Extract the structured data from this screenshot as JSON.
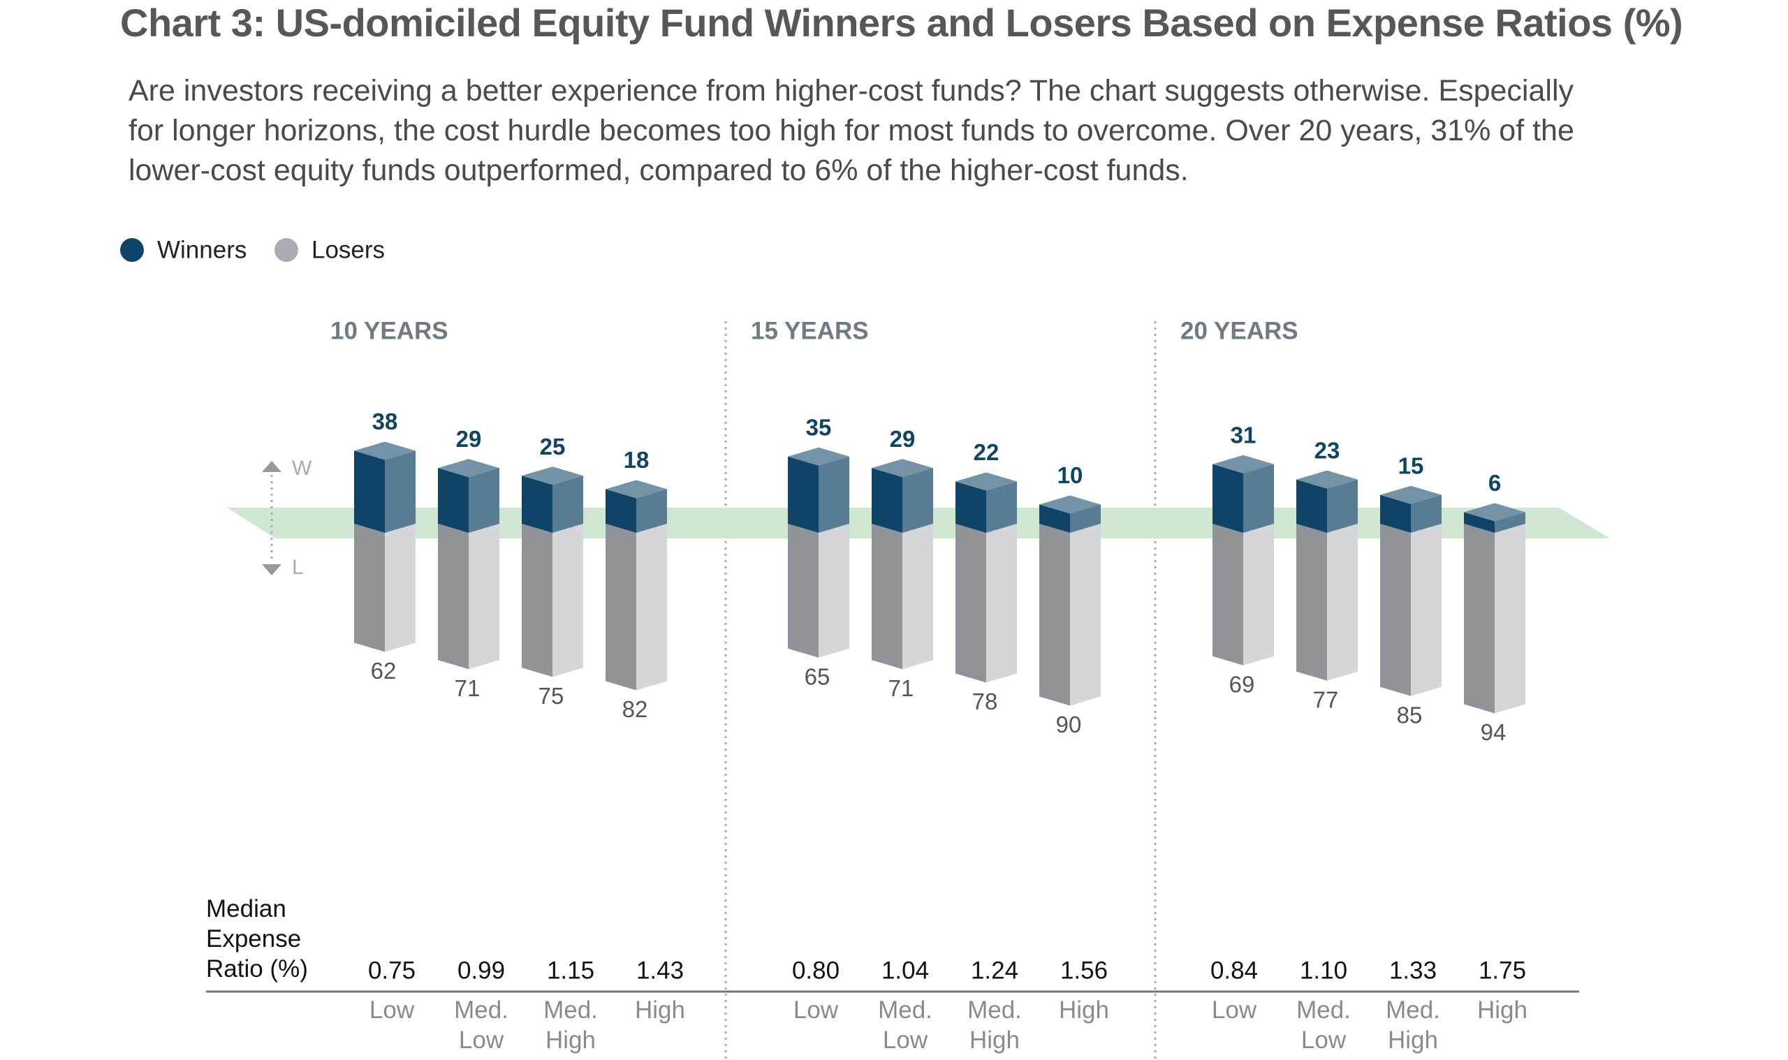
{
  "chart_data": {
    "type": "bar3d",
    "title": "Chart 3: US-domiciled Equity Fund Winners and Losers Based on Expense Ratios (%)",
    "subtitle": "Are investors receiving a better experience from higher-cost funds? The chart suggests otherwise. Especially for longer horizons, the cost hurdle becomes too high for most funds to overcome. Over 20 years, 31% of the lower-cost equity funds outperformed, compared to 6% of the higher-cost funds.",
    "panels": [
      "10 YEARS",
      "15 YEARS",
      "20 YEARS"
    ],
    "categories": [
      "Low",
      "Med. Low",
      "Med. High",
      "High"
    ],
    "direction_labels": {
      "up": "W",
      "down": "L"
    },
    "series": [
      {
        "name": "Winners",
        "color": "#0f4466",
        "values": [
          [
            38,
            29,
            25,
            18
          ],
          [
            35,
            29,
            22,
            10
          ],
          [
            31,
            23,
            15,
            6
          ]
        ]
      },
      {
        "name": "Losers",
        "color": "#a9adb3",
        "values": [
          [
            62,
            71,
            75,
            82
          ],
          [
            65,
            71,
            78,
            90
          ],
          [
            69,
            77,
            85,
            94
          ]
        ]
      }
    ],
    "expense_ratio": {
      "name": "Median Expense Ratio (%)",
      "values": [
        [
          0.75,
          0.99,
          1.15,
          1.43
        ],
        [
          0.8,
          1.04,
          1.24,
          1.56
        ],
        [
          0.84,
          1.1,
          1.33,
          1.75
        ]
      ],
      "value_labels": [
        [
          "0.75",
          "0.99",
          "1.15",
          "1.43"
        ],
        [
          "0.80",
          "1.04",
          "1.24",
          "1.56"
        ],
        [
          "0.84",
          "1.10",
          "1.33",
          "1.75"
        ]
      ]
    }
  }
}
